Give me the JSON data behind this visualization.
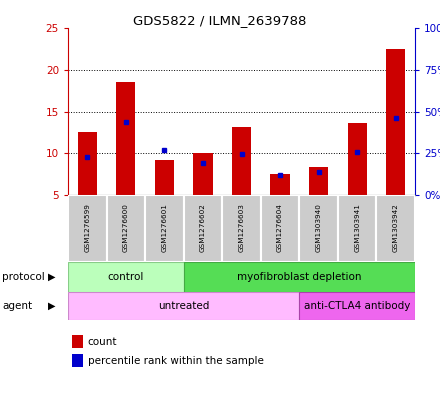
{
  "title": "GDS5822 / ILMN_2639788",
  "samples": [
    "GSM1276599",
    "GSM1276600",
    "GSM1276601",
    "GSM1276602",
    "GSM1276603",
    "GSM1276604",
    "GSM1303940",
    "GSM1303941",
    "GSM1303942"
  ],
  "counts": [
    12.6,
    18.5,
    9.2,
    10.0,
    13.2,
    7.5,
    8.4,
    13.6,
    22.5
  ],
  "percentile_ranks": [
    22.5,
    43.5,
    27.0,
    19.0,
    24.5,
    12.0,
    14.0,
    26.0,
    46.0
  ],
  "ylim_left": [
    5,
    25
  ],
  "ylim_right": [
    0,
    100
  ],
  "yticks_left": [
    5,
    10,
    15,
    20,
    25
  ],
  "yticks_right": [
    0,
    25,
    50,
    75,
    100
  ],
  "ytick_labels_right": [
    "0%",
    "25%",
    "50%",
    "75%",
    "100%"
  ],
  "bar_color": "#cc0000",
  "dot_color": "#0000cc",
  "bar_width": 0.5,
  "left_tick_color": "#cc0000",
  "right_tick_color": "#0000cc",
  "protocol_labels": [
    "control",
    "myofibroblast depletion"
  ],
  "protocol_control_n": 3,
  "protocol_depletion_n": 6,
  "protocol_color_light": "#bbffbb",
  "protocol_color_dark": "#55dd55",
  "agent_labels": [
    "untreated",
    "anti-CTLA4 antibody"
  ],
  "agent_untreated_n": 6,
  "agent_antibody_n": 3,
  "agent_color_light": "#ffbbff",
  "agent_color_dark": "#ee66ee",
  "sample_bg_color": "#cccccc",
  "legend_count_color": "#cc0000",
  "legend_pct_color": "#0000cc"
}
